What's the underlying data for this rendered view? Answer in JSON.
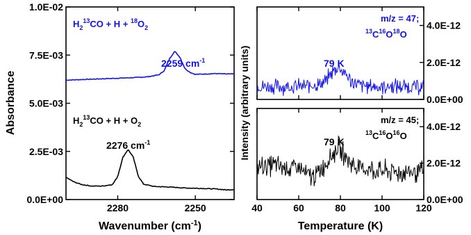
{
  "chart_data": [
    {
      "type": "line",
      "panel": "left",
      "xlabel": "Wavenumber (cm⁻¹)",
      "ylabel": "Absorbance",
      "xlim": [
        2300,
        2235
      ],
      "ylim": [
        0,
        0.01
      ],
      "x_ticks": [
        "2280",
        "2250"
      ],
      "y_ticks": [
        "0.0E+00",
        "2.5E-03",
        "5.0E-03",
        "7.5E-03",
        "1.0E-02"
      ],
      "series": [
        {
          "name": "H₂¹³CO + H + ¹⁸O₂",
          "color": "#1010ee",
          "x": [
            2300,
            2296,
            2292,
            2288,
            2284,
            2280,
            2276,
            2272,
            2268,
            2264,
            2262,
            2260,
            2258,
            2256,
            2254,
            2252,
            2250,
            2246,
            2242,
            2238,
            2235
          ],
          "y": [
            0.0062,
            0.00622,
            0.00624,
            0.00626,
            0.00628,
            0.0063,
            0.00632,
            0.00634,
            0.00638,
            0.00648,
            0.0067,
            0.0073,
            0.0077,
            0.0074,
            0.0068,
            0.0066,
            0.0065,
            0.00652,
            0.00654,
            0.00652,
            0.00652
          ]
        },
        {
          "name": "H₂¹³CO + H + O₂",
          "color": "#000000",
          "x": [
            2300,
            2297,
            2294,
            2290,
            2286,
            2282,
            2280,
            2278,
            2276,
            2274,
            2272,
            2270,
            2266,
            2260,
            2254,
            2248,
            2242,
            2238,
            2235
          ],
          "y": [
            0.00115,
            0.00092,
            0.00078,
            0.0007,
            0.0007,
            0.00078,
            0.0012,
            0.0022,
            0.0026,
            0.0022,
            0.0012,
            0.0008,
            0.00068,
            0.00065,
            0.0006,
            0.00058,
            0.00055,
            0.0005,
            0.00052
          ]
        }
      ],
      "annotations": [
        {
          "label_html": [
            "H",
            {
              "sub": "2"
            },
            {
              "sup": "13"
            },
            "CO + H + ",
            {
              "sup": "18"
            },
            "O",
            {
              "sub": "2"
            }
          ],
          "color": "#1010ee"
        },
        {
          "label_html": [
            "2259 cm",
            {
              "sup": "-1"
            }
          ],
          "color": "#1010ee"
        },
        {
          "label_html": [
            "H",
            {
              "sub": "2"
            },
            {
              "sup": "13"
            },
            "CO + H + O",
            {
              "sub": "2"
            }
          ],
          "color": "#000000"
        },
        {
          "label_html": [
            "2276 cm",
            {
              "sup": "-1"
            }
          ],
          "color": "#000000"
        }
      ]
    },
    {
      "type": "line",
      "panel": "right-top",
      "ylabel": "Intensity (arbitrary units)",
      "xlim": [
        40,
        120
      ],
      "ylim": [
        0,
        5e-12
      ],
      "y_ticks_right": [
        "0.0E+00",
        "2.0E-12",
        "4.0E-12"
      ],
      "series": [
        {
          "name": "m/z = 47; ¹³C¹⁶O¹⁸O",
          "color": "#1010ee",
          "x": [
            40,
            50,
            60,
            66,
            70,
            73,
            75,
            77,
            79,
            81,
            83,
            85,
            87,
            90,
            95,
            100,
            110,
            120
          ],
          "y": [
            7e-13,
            7e-13,
            7e-13,
            7.5e-13,
            8e-13,
            1e-12,
            1.3e-12,
            1.6e-12,
            1.75e-12,
            1.55e-12,
            1.3e-12,
            1e-12,
            8.5e-13,
            7.5e-13,
            7e-13,
            7e-13,
            7e-13,
            7e-13
          ],
          "noise": 3.5e-13
        }
      ],
      "annotations": [
        {
          "label_html": [
            "m/z = 47;"
          ],
          "color": "#1010ee"
        },
        {
          "label_html": [
            {
              "sup": "13"
            },
            "C",
            {
              "sup": "16"
            },
            "O",
            {
              "sup": "18"
            },
            "O"
          ],
          "color": "#1010ee"
        },
        {
          "label_html": [
            "79 K"
          ],
          "color": "#1010ee"
        }
      ]
    },
    {
      "type": "line",
      "panel": "right-bottom",
      "xlabel": "Temperature (K)",
      "xlim": [
        40,
        120
      ],
      "ylim": [
        0,
        5e-12
      ],
      "x_ticks": [
        "40",
        "60",
        "80",
        "100",
        "120"
      ],
      "y_ticks_right": [
        "0.0E+00",
        "2.0E-12",
        "4.0E-12"
      ],
      "series": [
        {
          "name": "m/z = 45; ¹³C¹⁶O¹⁶O",
          "color": "#000000",
          "x": [
            40,
            45,
            50,
            55,
            60,
            63,
            66,
            68,
            70,
            73,
            75,
            77,
            79,
            81,
            83,
            85,
            88,
            92,
            96,
            100,
            110,
            120
          ],
          "y": [
            1.75e-12,
            1.9e-12,
            1.85e-12,
            1.7e-12,
            1.75e-12,
            1.4e-12,
            1.3e-12,
            1.25e-12,
            1.55e-12,
            2.05e-12,
            2.3e-12,
            2.6e-12,
            2.85e-12,
            2.6e-12,
            2.3e-12,
            2e-12,
            1.75e-12,
            1.7e-12,
            1.6e-12,
            1.55e-12,
            1.5e-12,
            1.5e-12
          ],
          "noise": 5e-13
        }
      ],
      "annotations": [
        {
          "label_html": [
            "m/z = 45;"
          ],
          "color": "#000000"
        },
        {
          "label_html": [
            {
              "sup": "13"
            },
            "C",
            {
              "sup": "16"
            },
            "O",
            {
              "sup": "16"
            },
            "O"
          ],
          "color": "#000000"
        },
        {
          "label_html": [
            "79 K"
          ],
          "color": "#000000"
        }
      ]
    }
  ]
}
